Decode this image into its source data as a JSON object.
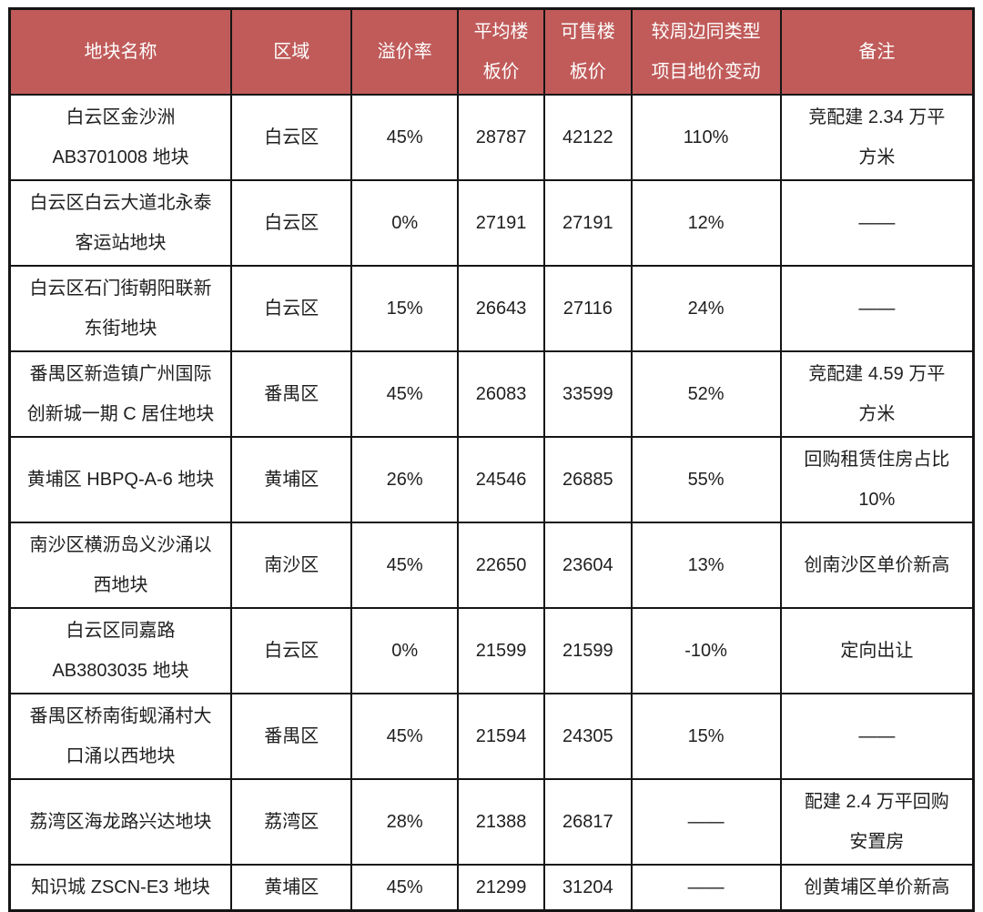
{
  "table": {
    "fields": [
      "name",
      "district",
      "premium",
      "avg_price",
      "sellable_price",
      "change",
      "remark"
    ],
    "columns": [
      "地块名称",
      "区域",
      "溢价率",
      "平均楼\n板价",
      "可售楼\n板价",
      "较周边同类型\n项目地价变动",
      "备注"
    ],
    "header_bg_color": "#c05b5a",
    "header_text_color": "#ffffff",
    "rows": [
      {
        "name": "白云区金沙洲\nAB3701008 地块",
        "district": "白云区",
        "premium": "45%",
        "avg_price": "28787",
        "sellable_price": "42122",
        "change": "110%",
        "remark": "竞配建 2.34 万平\n方米"
      },
      {
        "name": "白云区白云大道北永泰\n客运站地块",
        "district": "白云区",
        "premium": "0%",
        "avg_price": "27191",
        "sellable_price": "27191",
        "change": "12%",
        "remark": "——"
      },
      {
        "name": "白云区石门街朝阳联新\n东街地块",
        "district": "白云区",
        "premium": "15%",
        "avg_price": "26643",
        "sellable_price": "27116",
        "change": "24%",
        "remark": "——"
      },
      {
        "name": "番禺区新造镇广州国际\n创新城一期 C 居住地块",
        "district": "番禺区",
        "premium": "45%",
        "avg_price": "26083",
        "sellable_price": "33599",
        "change": "52%",
        "remark": "竞配建 4.59 万平\n方米"
      },
      {
        "name": "黄埔区 HBPQ-A-6 地块",
        "district": "黄埔区",
        "premium": "26%",
        "avg_price": "24546",
        "sellable_price": "26885",
        "change": "55%",
        "remark": "回购租赁住房占比\n10%"
      },
      {
        "name": "南沙区横沥岛义沙涌以\n西地块",
        "district": "南沙区",
        "premium": "45%",
        "avg_price": "22650",
        "sellable_price": "23604",
        "change": "13%",
        "remark": "创南沙区单价新高"
      },
      {
        "name": "白云区同嘉路\nAB3803035 地块",
        "district": "白云区",
        "premium": "0%",
        "avg_price": "21599",
        "sellable_price": "21599",
        "change": "-10%",
        "remark": "定向出让"
      },
      {
        "name": "番禺区桥南街蚬涌村大\n口涌以西地块",
        "district": "番禺区",
        "premium": "45%",
        "avg_price": "21594",
        "sellable_price": "24305",
        "change": "15%",
        "remark": "——"
      },
      {
        "name": "荔湾区海龙路兴达地块",
        "district": "荔湾区",
        "premium": "28%",
        "avg_price": "21388",
        "sellable_price": "26817",
        "change": "——",
        "remark": "配建 2.4 万平回购\n安置房"
      },
      {
        "name": "知识城 ZSCN-E3 地块",
        "district": "黄埔区",
        "premium": "45%",
        "avg_price": "21299",
        "sellable_price": "31204",
        "change": "——",
        "remark": "创黄埔区单价新高"
      }
    ]
  }
}
